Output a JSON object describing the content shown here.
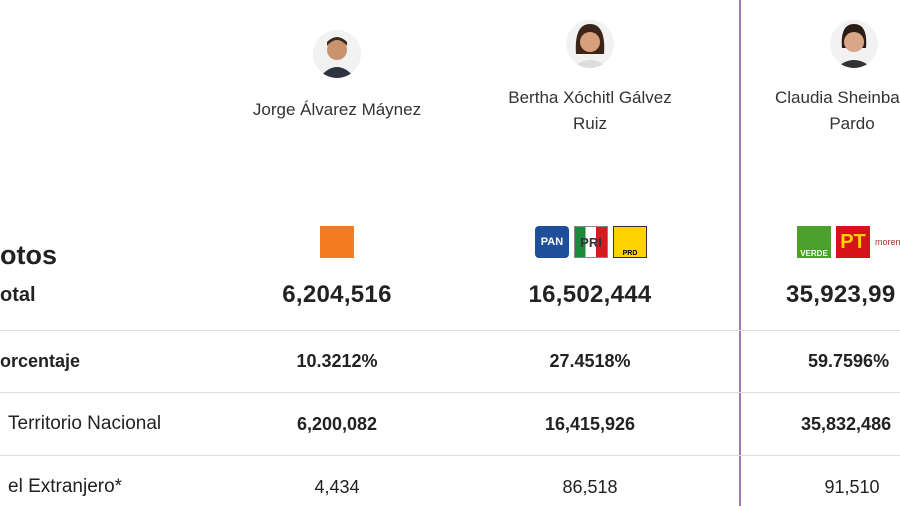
{
  "section_title": "otos",
  "candidates": [
    {
      "name": [
        "Jorge Álvarez Máynez"
      ]
    },
    {
      "name": [
        "Bertha Xóchitl Gálvez",
        "Ruiz"
      ],
      "parties": [
        "PAN",
        "PRI",
        "PRD"
      ]
    },
    {
      "name": [
        "Claudia Sheinba",
        "Pardo"
      ],
      "parties": [
        "VERDE",
        "PT",
        "morena"
      ]
    }
  ],
  "rows": [
    {
      "label": "otal",
      "values": [
        "6,204,516",
        "16,502,444",
        "35,923,99"
      ]
    },
    {
      "label": "orcentaje",
      "values": [
        "10.3212%",
        "27.4518%",
        "59.7596%"
      ]
    },
    {
      "label": "Territorio Nacional",
      "values": [
        "6,200,082",
        "16,415,926",
        "35,832,486"
      ]
    },
    {
      "label": "el Extranjero*",
      "values": [
        "4,434",
        "86,518",
        "91,510"
      ]
    }
  ]
}
